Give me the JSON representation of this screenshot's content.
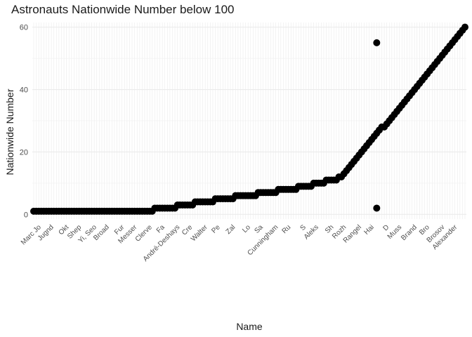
{
  "chart_data": {
    "type": "scatter",
    "title": "Astronauts Nationwide Number below 100",
    "xlabel": "Name",
    "ylabel": "Nationwide Number",
    "ylim": [
      -1.5,
      61.5
    ],
    "y_ticks": [
      0,
      20,
      40,
      60
    ],
    "grid": true,
    "point_color": "#000000",
    "gridline_color": "#ebebeb",
    "x_tick_labels_visible": [
      "Marc Jo",
      "Jugnd",
      "Okt",
      "Shep",
      "Yi, Seo",
      "Broad",
      "Fur",
      "Messer",
      "Clerve",
      "Fa",
      "André-Deshays",
      "Cre",
      "Walter",
      "Pe",
      "Zal",
      "Lo",
      "Sa",
      "Cunningham",
      "Ru",
      "S",
      "Aleks",
      "Sh",
      "Rozh",
      "Rangel",
      "Hai",
      "D",
      "Muss",
      "Brand",
      "Bro",
      "Brosov",
      "Alexander"
    ],
    "series": [
      {
        "name": "",
        "y": [
          1,
          1,
          1,
          1,
          1,
          1,
          1,
          1,
          1,
          1,
          1,
          1,
          1,
          1,
          1,
          1,
          1,
          1,
          1,
          1,
          1,
          1,
          1,
          1,
          1,
          1,
          1,
          1,
          1,
          1,
          1,
          1,
          1,
          1,
          1,
          1,
          1,
          1,
          1,
          1,
          1,
          1,
          1,
          1,
          1,
          1,
          1,
          1,
          2,
          2,
          2,
          2,
          2,
          2,
          2,
          2,
          2,
          3,
          3,
          3,
          3,
          3,
          3,
          3,
          4,
          4,
          4,
          4,
          4,
          4,
          4,
          4,
          5,
          5,
          5,
          5,
          5,
          5,
          5,
          5,
          6,
          6,
          6,
          6,
          6,
          6,
          6,
          6,
          6,
          7,
          7,
          7,
          7,
          7,
          7,
          7,
          7,
          8,
          8,
          8,
          8,
          8,
          8,
          8,
          8,
          9,
          9,
          9,
          9,
          9,
          9,
          10,
          10,
          10,
          10,
          10,
          11,
          11,
          11,
          11,
          11,
          12,
          12,
          13,
          14,
          15,
          16,
          17,
          18,
          19,
          20,
          21,
          22,
          23,
          24,
          25,
          26,
          27,
          28,
          28,
          29,
          30,
          31,
          32,
          33,
          34,
          35,
          36,
          37,
          38,
          39,
          40,
          41,
          42,
          43,
          44,
          45,
          46,
          47,
          48,
          49,
          50,
          51,
          52,
          53,
          54,
          55,
          56,
          57,
          58,
          59,
          60
        ],
        "extra_points": [
          {
            "index": 136,
            "y": 55
          },
          {
            "index": 136,
            "y": 2
          }
        ]
      }
    ]
  }
}
